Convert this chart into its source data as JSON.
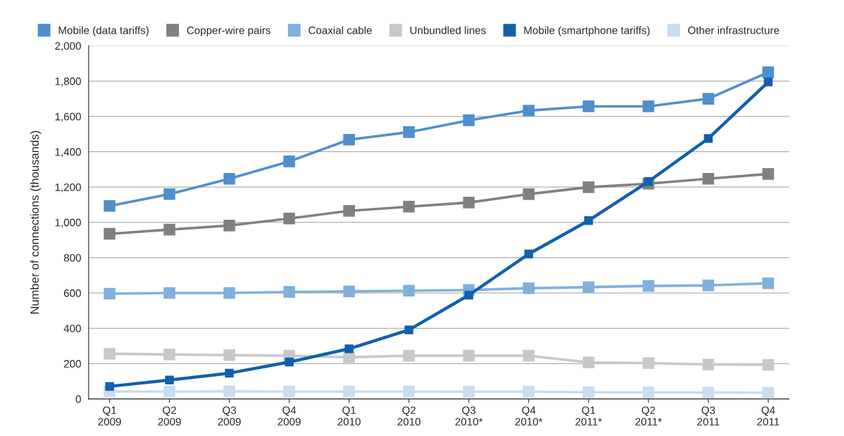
{
  "chart_data": {
    "type": "line",
    "ylabel": "Number of connections (thousands)",
    "categories": [
      "Q1\n2009",
      "Q2\n2009",
      "Q3\n2009",
      "Q4\n2009",
      "Q1\n2010",
      "Q2\n2010",
      "Q3\n2010*",
      "Q4\n2010*",
      "Q1\n2011*",
      "Q2\n2011*",
      "Q3\n2011",
      "Q4\n2011"
    ],
    "series": [
      {
        "name": "Mobile (data tariffs)",
        "color": "#4f8fcc",
        "values": [
          1093,
          1160,
          1247,
          1345,
          1468,
          1511,
          1578,
          1633,
          1657,
          1657,
          1700,
          1850
        ]
      },
      {
        "name": "Copper-wire pairs",
        "color": "#808080",
        "values": [
          935,
          959,
          982,
          1022,
          1065,
          1089,
          1112,
          1160,
          1199,
          1219,
          1247,
          1274
        ]
      },
      {
        "name": "Coaxial cable",
        "color": "#7fb0de",
        "values": [
          596,
          600,
          600,
          606,
          609,
          613,
          617,
          627,
          633,
          640,
          643,
          655
        ]
      },
      {
        "name": "Unbundled lines",
        "color": "#c8c8c8",
        "values": [
          256,
          252,
          248,
          245,
          236,
          245,
          245,
          245,
          207,
          203,
          195,
          193
        ]
      },
      {
        "name": "Mobile (smartphone tariffs)",
        "color": "#1060ae",
        "values": [
          71,
          107,
          146,
          209,
          284,
          391,
          588,
          821,
          1010,
          1231,
          1475,
          1795
        ]
      },
      {
        "name": "Other infrastructure",
        "color": "#c9dcf0",
        "values": [
          42,
          42,
          43,
          42,
          42,
          42,
          41,
          41,
          38,
          37,
          36,
          35
        ]
      }
    ],
    "ylim": [
      0,
      2000
    ],
    "yticks": [
      {
        "value": 0,
        "label": "0"
      },
      {
        "value": 200,
        "label": "200"
      },
      {
        "value": 400,
        "label": "400"
      },
      {
        "value": 600,
        "label": "600"
      },
      {
        "value": 800,
        "label": "800"
      },
      {
        "value": 1000,
        "label": "1,000"
      },
      {
        "value": 1200,
        "label": "1,200"
      },
      {
        "value": 1400,
        "label": "1,400"
      },
      {
        "value": 1600,
        "label": "1,600"
      },
      {
        "value": 1800,
        "label": "1,800"
      },
      {
        "value": 2000,
        "label": "2,000"
      }
    ],
    "grid": "y",
    "legend": "top right",
    "marker": "square",
    "line_style": "solid"
  }
}
